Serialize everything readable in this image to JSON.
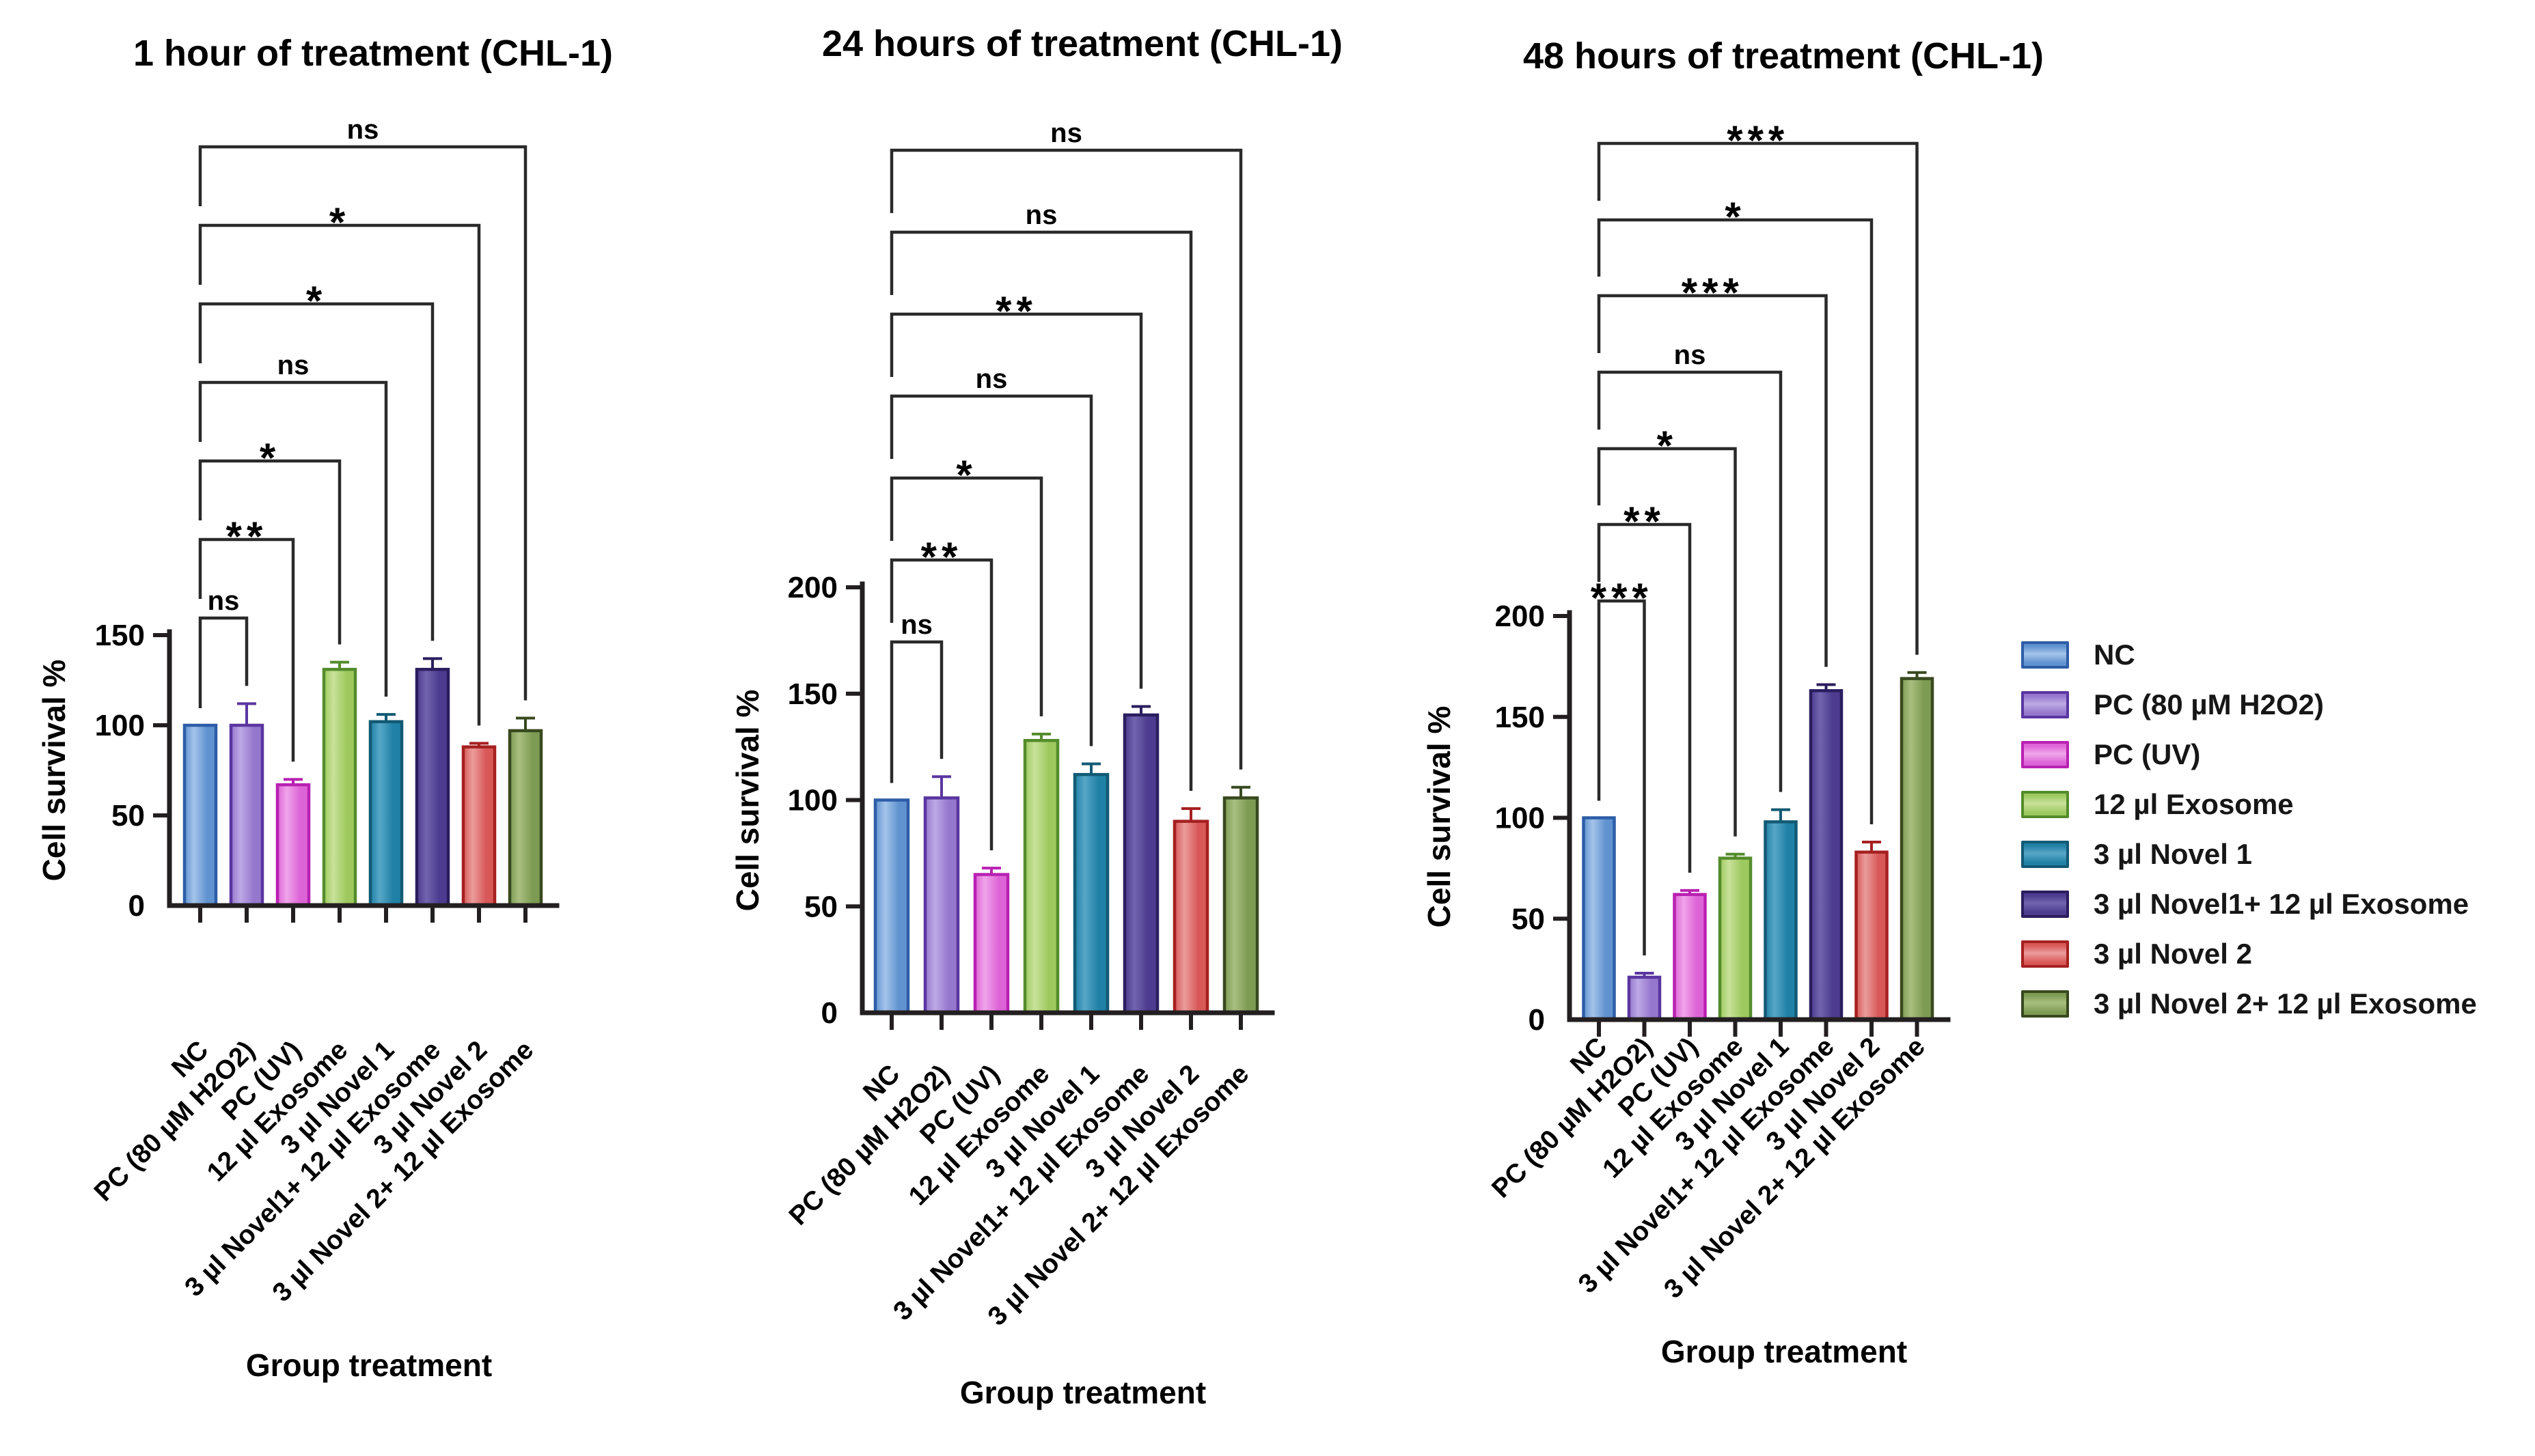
{
  "figure": {
    "background": "#ffffff",
    "axis_color": "#231f20",
    "bracket_color": "#2a2a2a",
    "text_color": "#000000"
  },
  "groups": [
    {
      "label": "NC",
      "border": "#2d5da7",
      "fill": "#6092cf",
      "light": "#a5c4ea"
    },
    {
      "label": "PC (80 µM H2O2)",
      "border": "#5a36a0",
      "fill": "#9577cd",
      "light": "#bda9e5"
    },
    {
      "label": "PC (UV)",
      "border": "#b821b2",
      "fill": "#dd64d6",
      "light": "#f0a5ea"
    },
    {
      "label": "12 µl Exosome",
      "border": "#548c2c",
      "fill": "#9ec95f",
      "light": "#c8e29a"
    },
    {
      "label": "3 µl Novel 1",
      "border": "#125a74",
      "fill": "#2180a5",
      "light": "#57a7c7"
    },
    {
      "label": "3 µl Novel1+ 12 µl Exosome",
      "border": "#2b1d5e",
      "fill": "#4c3b8e",
      "light": "#7264ae"
    },
    {
      "label": "3 µl Novel 2",
      "border": "#a62020",
      "fill": "#d85858",
      "light": "#eb9c9c"
    },
    {
      "label": "3 µl Novel 2+ 12 µl Exosome",
      "border": "#38491f",
      "fill": "#7e9b53",
      "light": "#a9bf80"
    }
  ],
  "chart_data": [
    {
      "type": "bar",
      "title": "1 hour of treatment (CHL-1)",
      "xlabel": "Group treatment",
      "ylabel": "Cell survival %",
      "ylim": [
        0,
        150
      ],
      "yticks": [
        0,
        50,
        100,
        150
      ],
      "grid": false,
      "categories": [
        "NC",
        "PC (80 µM H2O2)",
        "PC (UV)",
        "12 µl Exosome",
        "3 µl Novel 1",
        "3 µl Novel1+ 12 µl Exosome",
        "3 µl Novel 2",
        "3 µl Novel 2+ 12 µl Exosome"
      ],
      "values": [
        100,
        100,
        67,
        131,
        102,
        131,
        88,
        97
      ],
      "errors": [
        0,
        12,
        3,
        4,
        4,
        6,
        2,
        7
      ],
      "significance_vs_nc": [
        "ns",
        "**",
        "*",
        "ns",
        "*",
        "*",
        "ns"
      ]
    },
    {
      "type": "bar",
      "title": "24 hours of treatment (CHL-1)",
      "xlabel": "Group treatment",
      "ylabel": "Cell survival %",
      "ylim": [
        0,
        200
      ],
      "yticks": [
        0,
        50,
        100,
        150,
        200
      ],
      "grid": false,
      "categories": [
        "NC",
        "PC (80 µM H2O2)",
        "PC (UV)",
        "12 µl Exosome",
        "3 µl Novel 1",
        "3 µl Novel1+ 12 µl Exosome",
        "3 µl Novel 2",
        "3 µl Novel 2+ 12 µl Exosome"
      ],
      "values": [
        100,
        101,
        65,
        128,
        112,
        140,
        90,
        101
      ],
      "errors": [
        0,
        10,
        3,
        3,
        5,
        4,
        6,
        5
      ],
      "significance_vs_nc": [
        "ns",
        "**",
        "*",
        "ns",
        "**",
        "ns",
        "ns"
      ]
    },
    {
      "type": "bar",
      "title": "48 hours of treatment (CHL-1)",
      "xlabel": "Group treatment",
      "ylabel": "Cell survival %",
      "ylim": [
        0,
        200
      ],
      "yticks": [
        0,
        50,
        100,
        150,
        200
      ],
      "grid": false,
      "categories": [
        "NC",
        "PC (80 µM H2O2)",
        "PC (UV)",
        "12 µl Exosome",
        "3 µl Novel 1",
        "3 µl Novel1+ 12 µl Exosome",
        "3 µl Novel 2",
        "3 µl Novel 2+ 12 µl Exosome"
      ],
      "values": [
        100,
        21,
        62,
        80,
        98,
        163,
        83,
        169
      ],
      "errors": [
        0,
        2,
        2,
        2,
        6,
        3,
        5,
        3
      ],
      "significance_vs_nc": [
        "***",
        "**",
        "*",
        "ns",
        "***",
        "*",
        "***"
      ]
    }
  ],
  "legend": {
    "position": "right",
    "items": [
      "NC",
      "PC (80 µM H2O2)",
      "PC (UV)",
      "12 µl Exosome",
      "3 µl Novel 1",
      "3 µl Novel1+ 12 µl Exosome",
      "3 µl Novel 2",
      "3 µl Novel 2+ 12 µl Exosome"
    ]
  }
}
